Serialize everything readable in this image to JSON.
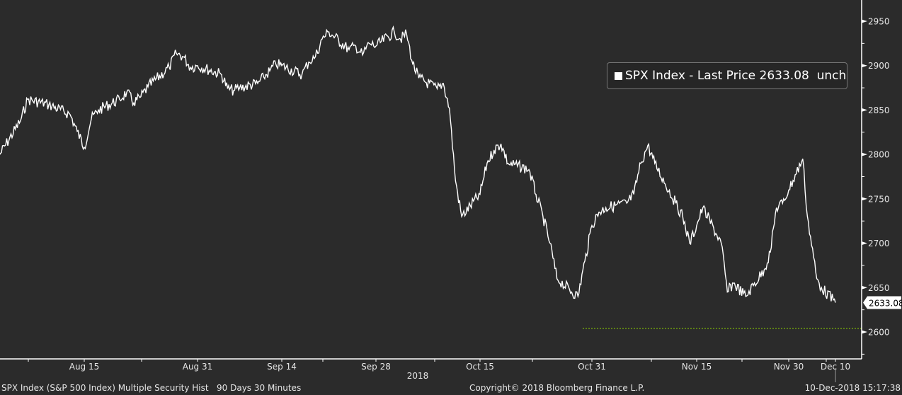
{
  "chart_data": {
    "type": "line",
    "title": "",
    "series": [
      {
        "name": "SPX Index - Last Price",
        "points": [
          [
            "2018-08-03",
            2799
          ],
          [
            "2018-08-06",
            2838
          ],
          [
            "2018-08-07",
            2862
          ],
          [
            "2018-08-10",
            2856
          ],
          [
            "2018-08-13",
            2845
          ],
          [
            "2018-08-14",
            2826
          ],
          [
            "2018-08-15",
            2808
          ],
          [
            "2018-08-16",
            2840
          ],
          [
            "2018-08-17",
            2850
          ],
          [
            "2018-08-20",
            2862
          ],
          [
            "2018-08-21",
            2870
          ],
          [
            "2018-08-22",
            2858
          ],
          [
            "2018-08-23",
            2865
          ],
          [
            "2018-08-24",
            2876
          ],
          [
            "2018-08-27",
            2898
          ],
          [
            "2018-08-28",
            2914
          ],
          [
            "2018-08-29",
            2910
          ],
          [
            "2018-08-30",
            2898
          ],
          [
            "2018-08-31",
            2900
          ],
          [
            "2018-09-04",
            2890
          ],
          [
            "2018-09-05",
            2874
          ],
          [
            "2018-09-06",
            2872
          ],
          [
            "2018-09-07",
            2875
          ],
          [
            "2018-09-10",
            2880
          ],
          [
            "2018-09-11",
            2887
          ],
          [
            "2018-09-12",
            2894
          ],
          [
            "2018-09-13",
            2902
          ],
          [
            "2018-09-14",
            2900
          ],
          [
            "2018-09-17",
            2890
          ],
          [
            "2018-09-18",
            2904
          ],
          [
            "2018-09-19",
            2910
          ],
          [
            "2018-09-20",
            2930
          ],
          [
            "2018-09-21",
            2938
          ],
          [
            "2018-09-24",
            2918
          ],
          [
            "2018-09-25",
            2922
          ],
          [
            "2018-09-26",
            2912
          ],
          [
            "2018-09-27",
            2925
          ],
          [
            "2018-09-28",
            2922
          ],
          [
            "2018-10-01",
            2938
          ],
          [
            "2018-10-02",
            2930
          ],
          [
            "2018-10-03",
            2936
          ],
          [
            "2018-10-04",
            2902
          ],
          [
            "2018-10-05",
            2886
          ],
          [
            "2018-10-08",
            2874
          ],
          [
            "2018-10-09",
            2880
          ],
          [
            "2018-10-10",
            2852
          ],
          [
            "2018-10-11",
            2770
          ],
          [
            "2018-10-12",
            2730
          ],
          [
            "2018-10-15",
            2755
          ],
          [
            "2018-10-16",
            2790
          ],
          [
            "2018-10-17",
            2805
          ],
          [
            "2018-10-18",
            2812
          ],
          [
            "2018-10-19",
            2790
          ],
          [
            "2018-10-22",
            2783
          ],
          [
            "2018-10-23",
            2755
          ],
          [
            "2018-10-24",
            2730
          ],
          [
            "2018-10-25",
            2700
          ],
          [
            "2018-10-26",
            2660
          ],
          [
            "2018-10-29",
            2640
          ],
          [
            "2018-10-30",
            2680
          ],
          [
            "2018-10-31",
            2720
          ],
          [
            "2018-11-01",
            2735
          ],
          [
            "2018-11-02",
            2740
          ],
          [
            "2018-11-05",
            2745
          ],
          [
            "2018-11-06",
            2755
          ],
          [
            "2018-11-07",
            2790
          ],
          [
            "2018-11-08",
            2810
          ],
          [
            "2018-11-09",
            2790
          ],
          [
            "2018-11-12",
            2745
          ],
          [
            "2018-11-13",
            2730
          ],
          [
            "2018-11-14",
            2700
          ],
          [
            "2018-11-15",
            2720
          ],
          [
            "2018-11-16",
            2740
          ],
          [
            "2018-11-19",
            2700
          ],
          [
            "2018-11-20",
            2645
          ],
          [
            "2018-11-21",
            2655
          ],
          [
            "2018-11-23",
            2640
          ],
          [
            "2018-11-26",
            2670
          ],
          [
            "2018-11-27",
            2690
          ],
          [
            "2018-11-28",
            2740
          ],
          [
            "2018-11-29",
            2745
          ],
          [
            "2018-11-30",
            2760
          ],
          [
            "2018-12-03",
            2795
          ],
          [
            "2018-12-04",
            2730
          ],
          [
            "2018-12-06",
            2660
          ],
          [
            "2018-12-07",
            2650
          ],
          [
            "2018-12-10",
            2633.08
          ]
        ],
        "color": "#ffffff"
      }
    ],
    "x_ticks": [
      {
        "label": "Aug 15",
        "date": "2018-08-15"
      },
      {
        "label": "Aug 31",
        "date": "2018-08-31"
      },
      {
        "label": "Sep 14",
        "date": "2018-09-14"
      },
      {
        "label": "Sep 28",
        "date": "2018-09-28"
      },
      {
        "label": "Oct 15",
        "date": "2018-10-15"
      },
      {
        "label": "Oct 31",
        "date": "2018-10-31"
      },
      {
        "label": "Nov 15",
        "date": "2018-11-15"
      },
      {
        "label": "Nov 30",
        "date": "2018-11-30"
      },
      {
        "label": "Dec 10",
        "date": "2018-12-10"
      }
    ],
    "year_label": "2018",
    "y_ticks": [
      2600,
      2650,
      2700,
      2750,
      2800,
      2850,
      2900,
      2950
    ],
    "ylim": [
      2575,
      2975
    ],
    "y_axis_side": "right",
    "last_price_label": "2633.08",
    "low_line": {
      "value": 2604,
      "color": "#8fd400",
      "style": "dotted"
    },
    "legend": {
      "text": "SPX Index - Last Price 2633.08  unch",
      "placement": "top-right"
    },
    "grid": false
  },
  "footer": {
    "left": "SPX Index (S&P 500 Index) Multiple Security Hist   90 Days 30 Minutes",
    "center": "Copyright© 2018 Bloomberg Finance L.P.",
    "right": "10-Dec-2018 15:17:38"
  },
  "colors": {
    "background": "#2b2b2b",
    "line": "#ffffff",
    "text": "#e6e6e6"
  }
}
